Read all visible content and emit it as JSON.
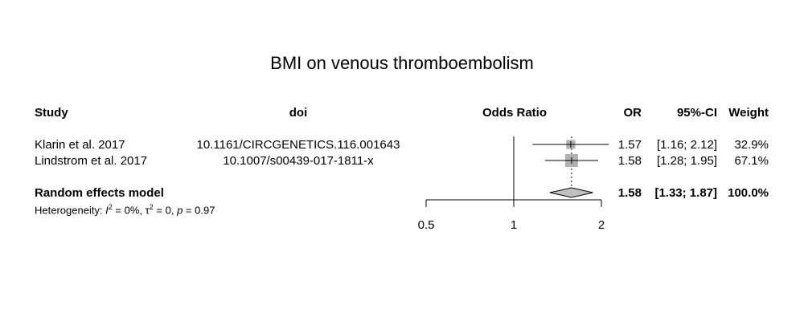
{
  "chart_data": {
    "type": "forest",
    "title": "BMI on venous thromboembolism",
    "columns": {
      "study": "Study",
      "doi": "doi",
      "effect": "Odds Ratio",
      "or": "OR",
      "ci": "95%-CI",
      "weight": "Weight"
    },
    "studies": [
      {
        "study": "Klarin et al. 2017",
        "doi": "10.1161/CIRCGENETICS.116.001643",
        "or": 1.57,
        "lower": 1.16,
        "upper": 2.12,
        "or_text": "1.57",
        "ci_text": "[1.16; 2.12]",
        "weight": 32.9,
        "weight_text": "32.9%"
      },
      {
        "study": "Lindstrom et al. 2017",
        "doi": "10.1007/s00439-017-1811-x",
        "or": 1.58,
        "lower": 1.28,
        "upper": 1.95,
        "or_text": "1.58",
        "ci_text": "[1.28; 1.95]",
        "weight": 67.1,
        "weight_text": "67.1%"
      }
    ],
    "pooled": {
      "label": "Random effects model",
      "or": 1.58,
      "lower": 1.33,
      "upper": 1.87,
      "or_text": "1.58",
      "ci_text": "[1.33; 1.87]",
      "weight_text": "100.0%"
    },
    "heterogeneity": {
      "prefix": "Heterogeneity: ",
      "i2_sym": "I",
      "i2_val": " = 0%, ",
      "tau_sym": "τ",
      "tau_val": " = 0, ",
      "p_sym": "p",
      "p_val": " = 0.97",
      "sup": "2"
    },
    "x_axis": {
      "scale": "log",
      "ticks": [
        0.5,
        1,
        2
      ],
      "tick_labels": [
        "0.5",
        "1",
        "2"
      ],
      "reference": 1
    },
    "colors": {
      "square": "#b0b0b0",
      "diamond": "#c0c0c0",
      "line": "#000000"
    }
  }
}
